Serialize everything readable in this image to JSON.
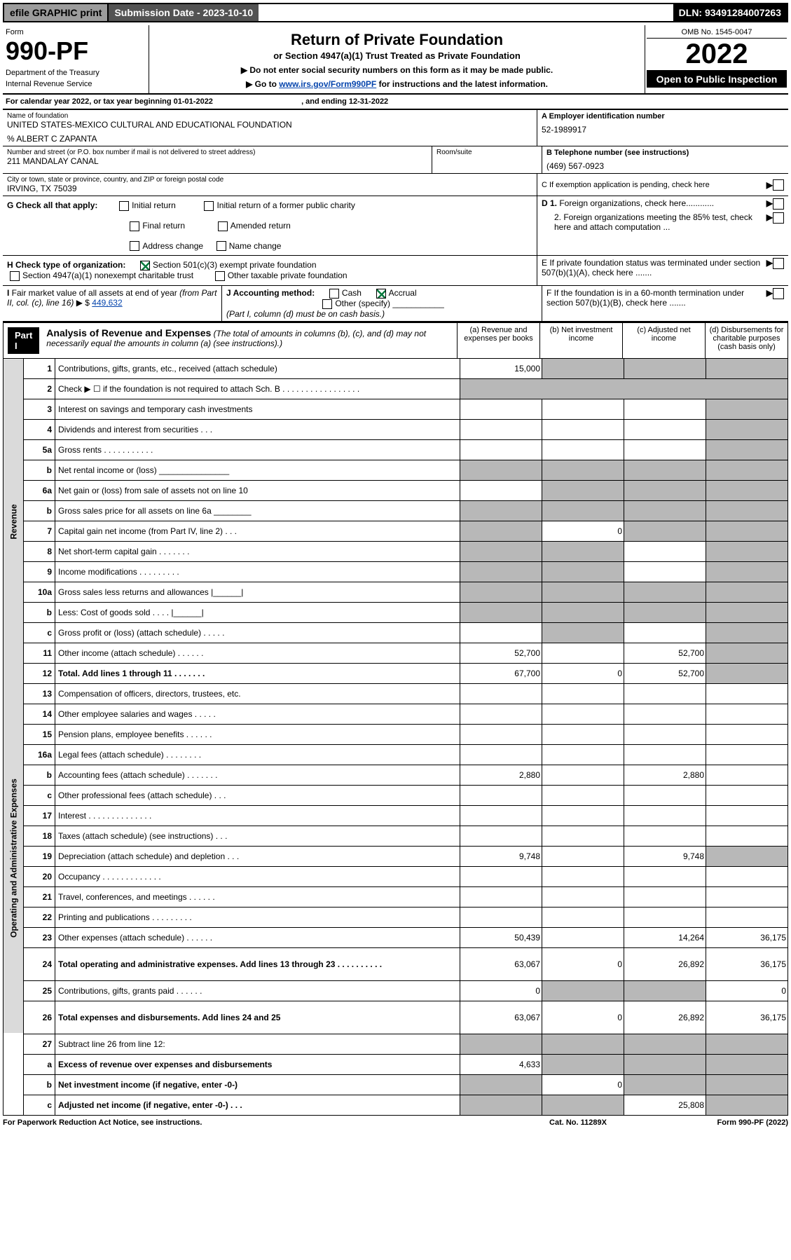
{
  "topbar": {
    "efile": "efile GRAPHIC print",
    "sub": "Submission Date - 2023-10-10",
    "dln": "DLN: 93491284007263"
  },
  "form": {
    "label": "Form",
    "number": "990-PF",
    "dept": "Department of the Treasury",
    "irs": "Internal Revenue Service"
  },
  "title": {
    "main": "Return of Private Foundation",
    "sub": "or Section 4947(a)(1) Trust Treated as Private Foundation",
    "i1": "▶ Do not enter social security numbers on this form as it may be made public.",
    "i2": "▶ Go to ",
    "link": "www.irs.gov/Form990PF",
    "i3": " for instructions and the latest information."
  },
  "yr": {
    "omb": "OMB No. 1545-0047",
    "year": "2022",
    "open": "Open to Public Inspection"
  },
  "cal": {
    "pre": "For calendar year 2022, or tax year beginning ",
    "beg": "01-01-2022",
    "mid": ", and ending ",
    "end": "12-31-2022"
  },
  "id": {
    "nameLbl": "Name of foundation",
    "name": "UNITED STATES-MEXICO CULTURAL AND EDUCATIONAL FOUNDATION",
    "care": "% ALBERT C ZAPANTA",
    "addrLbl": "Number and street (or P.O. box number if mail is not delivered to street address)",
    "addr": "211 MANDALAY CANAL",
    "roomLbl": "Room/suite",
    "cityLbl": "City or town, state or province, country, and ZIP or foreign postal code",
    "city": "IRVING, TX  75039",
    "einLbl": "A Employer identification number",
    "ein": "52-1989917",
    "telLbl": "B Telephone number (see instructions)",
    "tel": "(469) 567-0923",
    "cLbl": "C If exemption application is pending, check here"
  },
  "G": {
    "label": "G Check all that apply:",
    "o1": "Initial return",
    "o2": "Final return",
    "o3": "Address change",
    "o4": "Initial return of a former public charity",
    "o5": "Amended return",
    "o6": "Name change"
  },
  "H": {
    "label": "H Check type of organization:",
    "o1": "Section 501(c)(3) exempt private foundation",
    "o2": "Section 4947(a)(1) nonexempt charitable trust",
    "o3": "Other taxable private foundation"
  },
  "I": {
    "label": "I Fair market value of all assets at end of year (from Part II, col. (c), line 16) ▶ $",
    "val": "449,632"
  },
  "J": {
    "label": "J Accounting method:",
    "o1": "Cash",
    "o2": "Accrual",
    "o3": "Other (specify)",
    "note": "(Part I, column (d) must be on cash basis.)"
  },
  "D": {
    "d1": "D 1. Foreign organizations, check here............",
    "d2": "2. Foreign organizations meeting the 85% test, check here and attach computation ..."
  },
  "E": {
    "txt": "E If private foundation status was terminated under section 507(b)(1)(A), check here ......."
  },
  "F": {
    "txt": "F If the foundation is in a 60-month termination under section 507(b)(1)(B), check here ......."
  },
  "part1": {
    "label": "Part I",
    "title": "Analysis of Revenue and Expenses",
    "note": "(The total of amounts in columns (b), (c), and (d) may not necessarily equal the amounts in column (a) (see instructions).)",
    "colA": "(a)   Revenue and expenses per books",
    "colB": "(b)   Net investment income",
    "colC": "(c)   Adjusted net income",
    "colD": "(d)   Disbursements for charitable purposes (cash basis only)"
  },
  "sideRev": "Revenue",
  "sideOp": "Operating and Administrative Expenses",
  "rows": [
    {
      "n": "1",
      "d": "Contributions, gifts, grants, etc., received (attach schedule)",
      "a": "15,000",
      "b": "sh",
      "c": "sh",
      "dd": "sh"
    },
    {
      "n": "2",
      "d": "Check ▶ ☐ if the foundation is not required to attach Sch. B   .  .  .  .  .  .  .  .  .  .  .  .  .  .  .  .  .",
      "span": true
    },
    {
      "n": "3",
      "d": "Interest on savings and temporary cash investments",
      "a": "",
      "b": "",
      "c": "",
      "dd": "sh"
    },
    {
      "n": "4",
      "d": "Dividends and interest from securities    .   .   .",
      "a": "",
      "b": "",
      "c": "",
      "dd": "sh"
    },
    {
      "n": "5a",
      "d": "Gross rents    .   .   .   .   .   .   .   .   .   .   .",
      "a": "",
      "b": "",
      "c": "",
      "dd": "sh"
    },
    {
      "n": "b",
      "d": "Net rental income or (loss)   _______________",
      "a": "sh",
      "b": "sh",
      "c": "sh",
      "dd": "sh"
    },
    {
      "n": "6a",
      "d": "Net gain or (loss) from sale of assets not on line 10",
      "a": "",
      "b": "sh",
      "c": "sh",
      "dd": "sh"
    },
    {
      "n": "b",
      "d": "Gross sales price for all assets on line 6a ________",
      "a": "sh",
      "b": "sh",
      "c": "sh",
      "dd": "sh"
    },
    {
      "n": "7",
      "d": "Capital gain net income (from Part IV, line 2)   .   .   .",
      "a": "sh",
      "b": "0",
      "c": "sh",
      "dd": "sh"
    },
    {
      "n": "8",
      "d": "Net short-term capital gain   .   .   .   .   .   .   .",
      "a": "sh",
      "b": "sh",
      "c": "",
      "dd": "sh"
    },
    {
      "n": "9",
      "d": "Income modifications  .   .   .   .   .   .   .   .   .",
      "a": "sh",
      "b": "sh",
      "c": "",
      "dd": "sh"
    },
    {
      "n": "10a",
      "d": "Gross sales less returns and allowances  |______|",
      "a": "sh",
      "b": "sh",
      "c": "sh",
      "dd": "sh"
    },
    {
      "n": "b",
      "d": "Less: Cost of goods sold    .   .   .   .   |______|",
      "a": "sh",
      "b": "sh",
      "c": "sh",
      "dd": "sh"
    },
    {
      "n": "c",
      "d": "Gross profit or (loss) (attach schedule)   .   .   .   .   .",
      "a": "",
      "b": "sh",
      "c": "",
      "dd": "sh"
    },
    {
      "n": "11",
      "d": "Other income (attach schedule)    .   .   .   .   .   .",
      "a": "52,700",
      "b": "",
      "c": "52,700",
      "dd": "sh"
    },
    {
      "n": "12",
      "d": "Total. Add lines 1 through 11   .   .   .   .   .   .   .",
      "a": "67,700",
      "b": "0",
      "c": "52,700",
      "dd": "sh",
      "bold": true
    }
  ],
  "opRows": [
    {
      "n": "13",
      "d": "Compensation of officers, directors, trustees, etc.",
      "a": "",
      "b": "",
      "c": "",
      "dd": ""
    },
    {
      "n": "14",
      "d": "Other employee salaries and wages    .   .   .   .   .",
      "a": "",
      "b": "",
      "c": "",
      "dd": ""
    },
    {
      "n": "15",
      "d": "Pension plans, employee benefits  .   .   .   .   .   .",
      "a": "",
      "b": "",
      "c": "",
      "dd": ""
    },
    {
      "n": "16a",
      "d": "Legal fees (attach schedule)  .   .   .   .   .   .   .   .",
      "a": "",
      "b": "",
      "c": "",
      "dd": ""
    },
    {
      "n": "b",
      "d": "Accounting fees (attach schedule)  .   .   .   .   .   .   .",
      "a": "2,880",
      "b": "",
      "c": "2,880",
      "dd": ""
    },
    {
      "n": "c",
      "d": "Other professional fees (attach schedule)    .   .   .",
      "a": "",
      "b": "",
      "c": "",
      "dd": ""
    },
    {
      "n": "17",
      "d": "Interest  .   .   .   .   .   .   .   .   .   .   .   .   .   .",
      "a": "",
      "b": "",
      "c": "",
      "dd": ""
    },
    {
      "n": "18",
      "d": "Taxes (attach schedule) (see instructions)    .   .   .",
      "a": "",
      "b": "",
      "c": "",
      "dd": ""
    },
    {
      "n": "19",
      "d": "Depreciation (attach schedule) and depletion    .   .   .",
      "a": "9,748",
      "b": "",
      "c": "9,748",
      "dd": "sh"
    },
    {
      "n": "20",
      "d": "Occupancy  .   .   .   .   .   .   .   .   .   .   .   .   .",
      "a": "",
      "b": "",
      "c": "",
      "dd": ""
    },
    {
      "n": "21",
      "d": "Travel, conferences, and meetings  .   .   .   .   .   .",
      "a": "",
      "b": "",
      "c": "",
      "dd": ""
    },
    {
      "n": "22",
      "d": "Printing and publications  .   .   .   .   .   .   .   .   .",
      "a": "",
      "b": "",
      "c": "",
      "dd": ""
    },
    {
      "n": "23",
      "d": "Other expenses (attach schedule)  .   .   .   .   .   .",
      "a": "50,439",
      "b": "",
      "c": "14,264",
      "dd": "36,175"
    },
    {
      "n": "24",
      "d": "Total operating and administrative expenses. Add lines 13 through 23   .   .   .   .   .   .   .   .   .   .",
      "a": "63,067",
      "b": "0",
      "c": "26,892",
      "dd": "36,175",
      "bold": true,
      "tall": true
    },
    {
      "n": "25",
      "d": "Contributions, gifts, grants paid     .   .   .   .   .   .",
      "a": "0",
      "b": "sh",
      "c": "sh",
      "dd": "0"
    },
    {
      "n": "26",
      "d": "Total expenses and disbursements. Add lines 24 and 25",
      "a": "63,067",
      "b": "0",
      "c": "26,892",
      "dd": "36,175",
      "bold": true,
      "tall": true
    }
  ],
  "botRows": [
    {
      "n": "27",
      "d": "Subtract line 26 from line 12:",
      "a": "sh",
      "b": "sh",
      "c": "sh",
      "dd": "sh"
    },
    {
      "n": "a",
      "d": "Excess of revenue over expenses and disbursements",
      "a": "4,633",
      "b": "sh",
      "c": "sh",
      "dd": "sh",
      "bold": true
    },
    {
      "n": "b",
      "d": "Net investment income (if negative, enter -0-)",
      "a": "sh",
      "b": "0",
      "c": "sh",
      "dd": "sh",
      "bold": true
    },
    {
      "n": "c",
      "d": "Adjusted net income (if negative, enter -0-)   .   .   .",
      "a": "sh",
      "b": "sh",
      "c": "25,808",
      "dd": "sh",
      "bold": true
    }
  ],
  "footer": {
    "l": "For Paperwork Reduction Act Notice, see instructions.",
    "m": "Cat. No. 11289X",
    "r": "Form 990-PF (2022)"
  }
}
